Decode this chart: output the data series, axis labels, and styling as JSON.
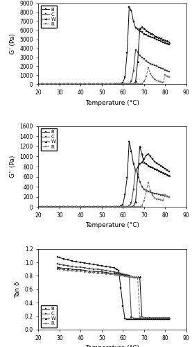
{
  "fig_width": 2.77,
  "fig_height": 5.0,
  "dpi": 100,
  "xlim": [
    20,
    90
  ],
  "xticks": [
    20,
    30,
    40,
    50,
    60,
    70,
    80,
    90
  ],
  "xlabel": "Temperature (°C)",
  "plot1": {
    "ylabel": "G' (Pa)",
    "ylim": [
      0,
      9000
    ],
    "yticks": [
      0,
      1000,
      2000,
      3000,
      4000,
      5000,
      6000,
      7000,
      8000,
      9000
    ],
    "legend_labels": [
      "B",
      "C",
      "W",
      "R"
    ],
    "legend_loc": "upper left",
    "series": {
      "B": {
        "x": [
          20,
          22,
          24,
          26,
          28,
          30,
          32,
          34,
          36,
          38,
          40,
          42,
          44,
          46,
          48,
          50,
          52,
          54,
          56,
          57,
          58,
          59,
          60,
          61,
          62,
          63,
          64,
          65,
          66,
          67,
          68,
          69,
          70,
          71,
          72,
          73,
          74,
          75,
          76,
          77,
          78,
          79,
          80,
          81,
          82
        ],
        "y": [
          0,
          0,
          0,
          0,
          0,
          0,
          0,
          0,
          0,
          0,
          0,
          0,
          0,
          0,
          0,
          0,
          0,
          0,
          0,
          0,
          0,
          50,
          200,
          800,
          3500,
          8600,
          8200,
          7000,
          6300,
          6100,
          5900,
          5800,
          5600,
          5500,
          5400,
          5300,
          5200,
          5100,
          5000,
          4900,
          4800,
          4700,
          4600,
          4500,
          4400
        ]
      },
      "C": {
        "x": [
          20,
          22,
          24,
          26,
          28,
          30,
          32,
          34,
          36,
          38,
          40,
          42,
          44,
          46,
          48,
          50,
          52,
          54,
          56,
          57,
          58,
          59,
          60,
          61,
          62,
          63,
          64,
          65,
          66,
          67,
          68,
          69,
          70,
          71,
          72,
          73,
          74,
          75,
          76,
          77,
          78,
          79,
          80,
          81,
          82
        ],
        "y": [
          0,
          0,
          0,
          0,
          0,
          0,
          0,
          0,
          0,
          0,
          0,
          0,
          0,
          0,
          0,
          0,
          0,
          0,
          0,
          0,
          0,
          0,
          0,
          0,
          0,
          50,
          300,
          1500,
          3800,
          3600,
          3200,
          3000,
          2800,
          2600,
          2400,
          2300,
          2200,
          2100,
          2000,
          1900,
          1800,
          1700,
          1600,
          1500,
          1400
        ]
      },
      "W": {
        "x": [
          20,
          22,
          24,
          26,
          28,
          30,
          32,
          34,
          36,
          38,
          40,
          42,
          44,
          46,
          48,
          50,
          52,
          54,
          56,
          57,
          58,
          59,
          60,
          61,
          62,
          63,
          64,
          65,
          66,
          67,
          68,
          69,
          70,
          71,
          72,
          73,
          74,
          75,
          76,
          77,
          78,
          79,
          80,
          81,
          82
        ],
        "y": [
          0,
          0,
          0,
          0,
          0,
          0,
          0,
          0,
          0,
          0,
          0,
          0,
          0,
          0,
          0,
          0,
          0,
          0,
          0,
          0,
          0,
          0,
          0,
          0,
          0,
          0,
          0,
          50,
          300,
          2500,
          6200,
          6400,
          6200,
          6000,
          5800,
          5700,
          5600,
          5400,
          5300,
          5200,
          5100,
          5000,
          4900,
          4800,
          4700
        ]
      },
      "R": {
        "x": [
          20,
          22,
          24,
          26,
          28,
          30,
          32,
          34,
          36,
          38,
          40,
          42,
          44,
          46,
          48,
          50,
          52,
          54,
          56,
          57,
          58,
          59,
          60,
          61,
          62,
          63,
          64,
          65,
          66,
          67,
          68,
          69,
          70,
          71,
          72,
          73,
          74,
          75,
          76,
          77,
          78,
          79,
          80,
          81,
          82
        ],
        "y": [
          0,
          0,
          0,
          0,
          0,
          0,
          0,
          0,
          0,
          0,
          0,
          0,
          0,
          0,
          0,
          0,
          0,
          0,
          0,
          0,
          0,
          0,
          0,
          0,
          0,
          0,
          0,
          0,
          0,
          0,
          0,
          50,
          300,
          900,
          1800,
          1200,
          800,
          600,
          400,
          300,
          250,
          200,
          1000,
          900,
          800
        ]
      }
    }
  },
  "plot2": {
    "ylabel": "G'' (Pa)",
    "ylim": [
      0,
      1600
    ],
    "yticks": [
      0,
      200,
      400,
      600,
      800,
      1000,
      1200,
      1400,
      1600
    ],
    "legend_labels": [
      "B",
      "C",
      "W",
      "R"
    ],
    "legend_loc": "upper left",
    "series": {
      "B": {
        "x": [
          20,
          22,
          24,
          26,
          28,
          30,
          32,
          34,
          36,
          38,
          40,
          42,
          44,
          46,
          48,
          50,
          52,
          54,
          56,
          57,
          58,
          59,
          60,
          61,
          62,
          63,
          64,
          65,
          66,
          67,
          68,
          69,
          70,
          71,
          72,
          73,
          74,
          75,
          76,
          77,
          78,
          79,
          80,
          81,
          82
        ],
        "y": [
          0,
          0,
          0,
          0,
          0,
          0,
          0,
          0,
          0,
          0,
          0,
          0,
          0,
          0,
          0,
          0,
          0,
          0,
          0,
          0,
          0,
          10,
          50,
          250,
          580,
          1300,
          1100,
          850,
          720,
          780,
          850,
          880,
          950,
          1020,
          1050,
          1000,
          950,
          900,
          870,
          840,
          820,
          790,
          760,
          730,
          700
        ]
      },
      "C": {
        "x": [
          20,
          22,
          24,
          26,
          28,
          30,
          32,
          34,
          36,
          38,
          40,
          42,
          44,
          46,
          48,
          50,
          52,
          54,
          56,
          57,
          58,
          59,
          60,
          61,
          62,
          63,
          64,
          65,
          66,
          67,
          68,
          69,
          70,
          71,
          72,
          73,
          74,
          75,
          76,
          77,
          78,
          79,
          80,
          81,
          82
        ],
        "y": [
          0,
          0,
          0,
          0,
          0,
          0,
          0,
          0,
          0,
          0,
          0,
          0,
          0,
          0,
          0,
          0,
          0,
          0,
          0,
          0,
          0,
          0,
          0,
          0,
          0,
          20,
          80,
          350,
          750,
          650,
          500,
          400,
          350,
          330,
          310,
          290,
          280,
          270,
          260,
          250,
          240,
          230,
          220,
          210,
          200
        ]
      },
      "W": {
        "x": [
          20,
          22,
          24,
          26,
          28,
          30,
          32,
          34,
          36,
          38,
          40,
          42,
          44,
          46,
          48,
          50,
          52,
          54,
          56,
          57,
          58,
          59,
          60,
          61,
          62,
          63,
          64,
          65,
          66,
          67,
          68,
          69,
          70,
          71,
          72,
          73,
          74,
          75,
          76,
          77,
          78,
          79,
          80,
          81,
          82
        ],
        "y": [
          0,
          0,
          0,
          0,
          0,
          0,
          0,
          0,
          0,
          0,
          0,
          0,
          0,
          0,
          0,
          0,
          0,
          0,
          0,
          0,
          0,
          0,
          0,
          0,
          0,
          0,
          0,
          20,
          100,
          600,
          1200,
          1050,
          880,
          850,
          820,
          800,
          780,
          760,
          740,
          720,
          700,
          680,
          660,
          640,
          620
        ]
      },
      "R": {
        "x": [
          20,
          22,
          24,
          26,
          28,
          30,
          32,
          34,
          36,
          38,
          40,
          42,
          44,
          46,
          48,
          50,
          52,
          54,
          56,
          57,
          58,
          59,
          60,
          61,
          62,
          63,
          64,
          65,
          66,
          67,
          68,
          69,
          70,
          71,
          72,
          73,
          74,
          75,
          76,
          77,
          78,
          79,
          80,
          81,
          82
        ],
        "y": [
          0,
          0,
          0,
          0,
          0,
          0,
          0,
          0,
          0,
          0,
          0,
          0,
          0,
          0,
          0,
          0,
          0,
          0,
          0,
          0,
          0,
          0,
          0,
          0,
          0,
          0,
          0,
          0,
          0,
          0,
          0,
          20,
          120,
          300,
          480,
          320,
          230,
          180,
          160,
          150,
          140,
          130,
          230,
          210,
          190
        ]
      }
    }
  },
  "plot3": {
    "ylabel": "Tan δ",
    "ylim": [
      0,
      1.2
    ],
    "yticks": [
      0,
      0.2,
      0.4,
      0.6,
      0.8,
      1.0,
      1.2
    ],
    "legend_labels": [
      "B",
      "C",
      "W",
      "R"
    ],
    "legend_loc": "lower left",
    "series": {
      "B": {
        "x": [
          29,
          30,
          32,
          34,
          36,
          38,
          40,
          42,
          44,
          46,
          48,
          50,
          52,
          54,
          56,
          57,
          58,
          59,
          60,
          61,
          62,
          63,
          64,
          65,
          66,
          67,
          68,
          69,
          70,
          71,
          72,
          73,
          74,
          75,
          76,
          77,
          78,
          79,
          80,
          81,
          82
        ],
        "y": [
          1.08,
          1.07,
          1.05,
          1.04,
          1.02,
          1.01,
          1.0,
          0.99,
          0.98,
          0.97,
          0.96,
          0.95,
          0.94,
          0.93,
          0.92,
          0.9,
          0.88,
          0.62,
          0.35,
          0.16,
          0.15,
          0.15,
          0.15,
          0.15,
          0.15,
          0.15,
          0.15,
          0.15,
          0.15,
          0.15,
          0.15,
          0.15,
          0.15,
          0.15,
          0.15,
          0.15,
          0.15,
          0.15,
          0.15,
          0.15,
          0.15
        ]
      },
      "C": {
        "x": [
          29,
          30,
          32,
          34,
          36,
          38,
          40,
          42,
          44,
          46,
          48,
          50,
          52,
          54,
          56,
          57,
          58,
          59,
          60,
          61,
          62,
          63,
          64,
          65,
          66,
          67,
          68,
          69,
          70,
          71,
          72,
          73,
          74,
          75,
          76,
          77,
          78,
          79,
          80,
          81,
          82
        ],
        "y": [
          0.98,
          0.97,
          0.96,
          0.95,
          0.94,
          0.93,
          0.93,
          0.92,
          0.91,
          0.9,
          0.9,
          0.89,
          0.88,
          0.87,
          0.86,
          0.85,
          0.85,
          0.84,
          0.83,
          0.82,
          0.81,
          0.8,
          0.19,
          0.17,
          0.17,
          0.17,
          0.17,
          0.17,
          0.17,
          0.17,
          0.17,
          0.17,
          0.17,
          0.17,
          0.17,
          0.17,
          0.17,
          0.17,
          0.17,
          0.17,
          0.17
        ]
      },
      "W": {
        "x": [
          29,
          30,
          32,
          34,
          36,
          38,
          40,
          42,
          44,
          46,
          48,
          50,
          52,
          54,
          56,
          57,
          58,
          59,
          60,
          61,
          62,
          63,
          64,
          65,
          66,
          67,
          68,
          69,
          70,
          71,
          72,
          73,
          74,
          75,
          76,
          77,
          78,
          79,
          80,
          81,
          82
        ],
        "y": [
          0.93,
          0.92,
          0.91,
          0.91,
          0.9,
          0.89,
          0.89,
          0.88,
          0.87,
          0.87,
          0.86,
          0.86,
          0.85,
          0.84,
          0.84,
          0.83,
          0.83,
          0.82,
          0.82,
          0.81,
          0.8,
          0.8,
          0.79,
          0.78,
          0.78,
          0.78,
          0.78,
          0.19,
          0.18,
          0.18,
          0.18,
          0.18,
          0.18,
          0.18,
          0.18,
          0.18,
          0.18,
          0.18,
          0.18,
          0.18,
          0.18
        ]
      },
      "R": {
        "x": [
          29,
          30,
          32,
          34,
          36,
          38,
          40,
          42,
          44,
          46,
          48,
          50,
          52,
          54,
          56,
          57,
          58,
          59,
          60,
          61,
          62,
          63,
          64,
          65,
          66,
          67,
          68,
          69,
          70,
          71,
          72,
          73,
          74,
          75,
          76,
          77,
          78,
          79,
          80,
          81,
          82
        ],
        "y": [
          0.9,
          0.9,
          0.89,
          0.88,
          0.88,
          0.87,
          0.87,
          0.86,
          0.85,
          0.85,
          0.84,
          0.84,
          0.83,
          0.83,
          0.82,
          0.81,
          0.81,
          0.8,
          0.8,
          0.79,
          0.79,
          0.78,
          0.78,
          0.77,
          0.77,
          0.77,
          0.19,
          0.18,
          0.18,
          0.18,
          0.18,
          0.18,
          0.18,
          0.18,
          0.18,
          0.18,
          0.18,
          0.18,
          0.18,
          0.18,
          0.18
        ]
      }
    }
  },
  "colors": [
    "#1a1a1a",
    "#444444",
    "#1a1a1a",
    "#888888"
  ],
  "markers": [
    "s",
    "s",
    "^",
    "s"
  ],
  "linestyles": [
    "-",
    "-",
    "-",
    "-"
  ]
}
